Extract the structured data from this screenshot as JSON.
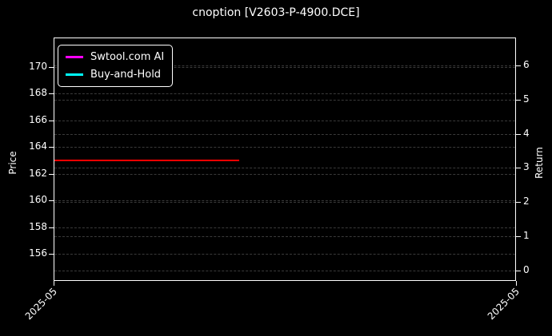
{
  "title": "cnoption [V2603-P-4900.DCE]",
  "chart_data": {
    "type": "line",
    "title": "cnoption [V2603-P-4900.DCE]",
    "ylabel_left": "Price",
    "ylabel_right": "Return",
    "left_ticks": [
      170,
      168,
      166,
      164,
      162,
      160,
      158,
      156
    ],
    "left_range": [
      154.0,
      172.2
    ],
    "right_ticks": [
      6,
      5,
      4,
      3,
      2,
      1,
      0
    ],
    "right_range": [
      -0.31,
      6.82
    ],
    "x_tick_labels": [
      "2025-05",
      "2025-05"
    ],
    "x_tick_fracs": [
      0,
      1
    ],
    "grid": {
      "style": "dashed",
      "color": "#3a3a3a"
    },
    "legend_entries": [
      {
        "name": "Swtool.com AI",
        "color": "#ff00ff"
      },
      {
        "name": "Buy-and-Hold",
        "color": "#00ffff"
      }
    ],
    "series": [
      {
        "name": "price-line",
        "color": "#ff0000",
        "y_value": 163,
        "x_start_frac": 0.0,
        "x_end_frac": 0.4
      }
    ],
    "colors": {
      "background": "#000000",
      "text": "#ffffff",
      "spine": "#ffffff"
    }
  }
}
